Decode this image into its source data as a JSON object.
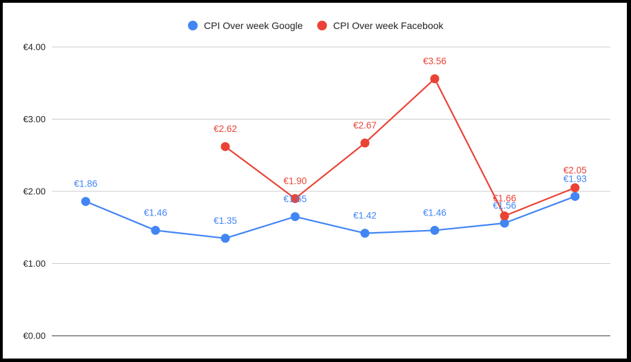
{
  "chart_data": {
    "type": "line",
    "title": "",
    "xlabel": "",
    "ylabel": "",
    "ylim": [
      0,
      4
    ],
    "yticks": [
      "€0.00",
      "€1.00",
      "€2.00",
      "€3.00",
      "€4.00"
    ],
    "grid": true,
    "legend_position": "top",
    "series": [
      {
        "name": "CPI Over week Google",
        "color": "#4285f4",
        "values": [
          1.86,
          1.46,
          1.35,
          1.65,
          1.42,
          1.46,
          1.56,
          1.93
        ],
        "labels": [
          "€1.86",
          "€1.46",
          "€1.35",
          "€1.65",
          "€1.42",
          "€1.46",
          "€1.56",
          "€1.93"
        ]
      },
      {
        "name": "CPI Over week Facebook",
        "color": "#ea4335",
        "values": [
          null,
          null,
          2.62,
          1.9,
          2.67,
          3.56,
          1.66,
          2.05
        ],
        "labels": [
          null,
          null,
          "€2.62",
          "€1.90",
          "€2.67",
          "€3.56",
          "€1.66",
          "€2.05"
        ]
      }
    ]
  }
}
